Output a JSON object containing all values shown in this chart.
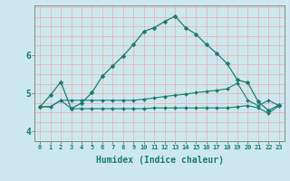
{
  "xlabel": "Humidex (Indice chaleur)",
  "bg_color": "#cce8ee",
  "grid_color": "#e8b4b8",
  "line_color": "#1a7a6e",
  "line1_y": [
    4.65,
    4.95,
    5.3,
    4.6,
    4.75,
    5.02,
    5.45,
    5.72,
    5.98,
    6.28,
    6.62,
    6.72,
    6.88,
    7.02,
    6.72,
    6.55,
    6.28,
    6.05,
    5.78,
    5.35,
    5.28,
    4.78,
    4.55,
    4.7
  ],
  "line2_y": [
    4.65,
    4.65,
    4.82,
    4.82,
    4.82,
    4.82,
    4.82,
    4.82,
    4.82,
    4.82,
    4.85,
    4.88,
    4.92,
    4.95,
    4.98,
    5.02,
    5.05,
    5.08,
    5.12,
    5.27,
    4.82,
    4.68,
    4.82,
    4.68
  ],
  "line3_y": [
    4.65,
    4.65,
    4.82,
    4.6,
    4.6,
    4.6,
    4.6,
    4.6,
    4.6,
    4.6,
    4.6,
    4.62,
    4.62,
    4.62,
    4.62,
    4.62,
    4.62,
    4.62,
    4.62,
    4.65,
    4.68,
    4.62,
    4.48,
    4.68
  ],
  "x": [
    0,
    1,
    2,
    3,
    4,
    5,
    6,
    7,
    8,
    9,
    10,
    11,
    12,
    13,
    14,
    15,
    16,
    17,
    18,
    19,
    20,
    21,
    22,
    23
  ],
  "xlim": [
    -0.5,
    23.5
  ],
  "ylim": [
    3.75,
    7.3
  ],
  "yticks": [
    4,
    5,
    6
  ],
  "xticks": [
    0,
    1,
    2,
    3,
    4,
    5,
    6,
    7,
    8,
    9,
    10,
    11,
    12,
    13,
    14,
    15,
    16,
    17,
    18,
    19,
    20,
    21,
    22,
    23
  ]
}
